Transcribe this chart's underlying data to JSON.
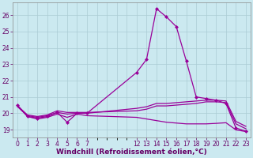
{
  "background_color": "#cbe9f0",
  "grid_color": "#aaccd4",
  "line_color": "#990099",
  "xlabel": "Windchill (Refroidissement éolien,°C)",
  "xlabel_fontsize": 6.5,
  "tick_fontsize": 5.5,
  "ylim": [
    18.5,
    26.8
  ],
  "yticks": [
    19,
    20,
    21,
    22,
    23,
    24,
    25,
    26
  ],
  "xlim": [
    -0.5,
    23.5
  ],
  "series": [
    {
      "x": [
        0,
        1,
        2,
        3,
        4,
        5,
        6,
        7,
        12,
        13,
        14,
        15,
        16,
        17,
        18,
        19,
        20,
        21,
        22,
        23
      ],
      "y": [
        20.5,
        19.8,
        19.7,
        19.8,
        20.05,
        19.45,
        20.0,
        20.0,
        22.5,
        23.3,
        26.4,
        25.9,
        25.3,
        23.2,
        21.0,
        20.9,
        20.8,
        20.6,
        19.1,
        18.9
      ],
      "marker": "D",
      "markersize": 2.0,
      "linewidth": 0.9
    },
    {
      "x": [
        0,
        1,
        2,
        3,
        4,
        5,
        6,
        7,
        12,
        13,
        14,
        15,
        16,
        17,
        18,
        19,
        20,
        21,
        22,
        23
      ],
      "y": [
        20.4,
        19.85,
        19.75,
        19.85,
        20.05,
        19.95,
        20.0,
        20.0,
        20.3,
        20.4,
        20.6,
        20.6,
        20.65,
        20.7,
        20.75,
        20.8,
        20.8,
        20.75,
        19.5,
        19.2
      ],
      "marker": null,
      "linewidth": 0.9
    },
    {
      "x": [
        0,
        1,
        2,
        3,
        4,
        5,
        6,
        7,
        12,
        13,
        14,
        15,
        16,
        17,
        18,
        19,
        20,
        21,
        22,
        23
      ],
      "y": [
        20.45,
        19.9,
        19.8,
        19.9,
        20.15,
        20.05,
        20.05,
        20.05,
        20.15,
        20.25,
        20.45,
        20.45,
        20.5,
        20.55,
        20.6,
        20.7,
        20.7,
        20.65,
        19.35,
        19.05
      ],
      "marker": null,
      "linewidth": 0.9
    },
    {
      "x": [
        0,
        1,
        2,
        3,
        4,
        5,
        6,
        7,
        12,
        13,
        14,
        15,
        16,
        17,
        18,
        19,
        20,
        21,
        22,
        23
      ],
      "y": [
        20.45,
        19.8,
        19.65,
        19.75,
        19.95,
        19.75,
        19.95,
        19.85,
        19.75,
        19.65,
        19.55,
        19.45,
        19.4,
        19.35,
        19.35,
        19.35,
        19.38,
        19.42,
        18.98,
        18.88
      ],
      "marker": null,
      "linewidth": 0.9
    }
  ]
}
